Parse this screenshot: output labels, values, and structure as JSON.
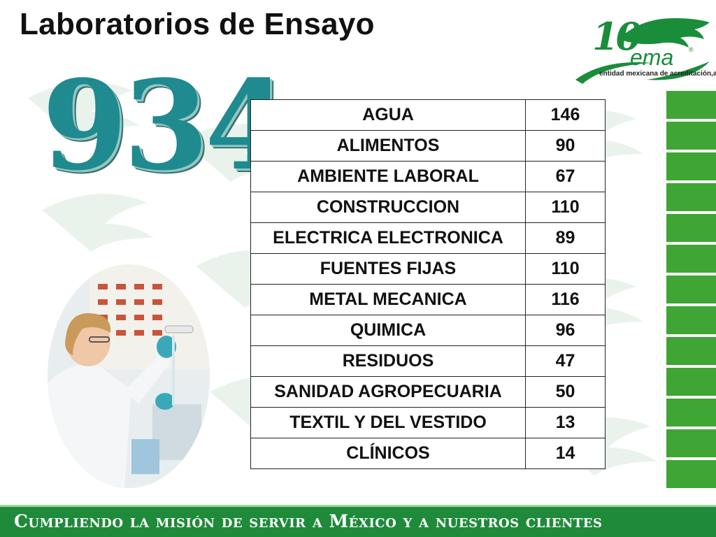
{
  "slide": {
    "title": "Laboratorios de Ensayo",
    "total": "934",
    "banner": "Cumpliendo la misión de servir a México y a nuestros clientes"
  },
  "logo": {
    "number": "10",
    "brand": "ema",
    "registered": "®",
    "tagline": "entidad mexicana de acreditación,a.c."
  },
  "table": {
    "rows": [
      {
        "category": "AGUA",
        "count": "146"
      },
      {
        "category": "ALIMENTOS",
        "count": "90"
      },
      {
        "category": "AMBIENTE LABORAL",
        "count": "67"
      },
      {
        "category": "CONSTRUCCION",
        "count": "110"
      },
      {
        "category": "ELECTRICA ELECTRONICA",
        "count": "89"
      },
      {
        "category": "FUENTES FIJAS",
        "count": "110"
      },
      {
        "category": "METAL MECANICA",
        "count": "116"
      },
      {
        "category": "QUIMICA",
        "count": "96"
      },
      {
        "category": "RESIDUOS",
        "count": "47"
      },
      {
        "category": "SANIDAD AGROPECUARIA",
        "count": "50"
      },
      {
        "category": "TEXTIL Y DEL VESTIDO",
        "count": "13"
      },
      {
        "category": "CLÍNICOS",
        "count": "14"
      }
    ]
  },
  "colors": {
    "accent_teal": "#1f8a8f",
    "brand_green": "#1a8d3b",
    "stripe_green": "#3fa535",
    "banner_green": "#1f8a3a"
  },
  "icons": {
    "logo_mark": "eagle-head-icon",
    "photo": "lab-technician-photo"
  }
}
